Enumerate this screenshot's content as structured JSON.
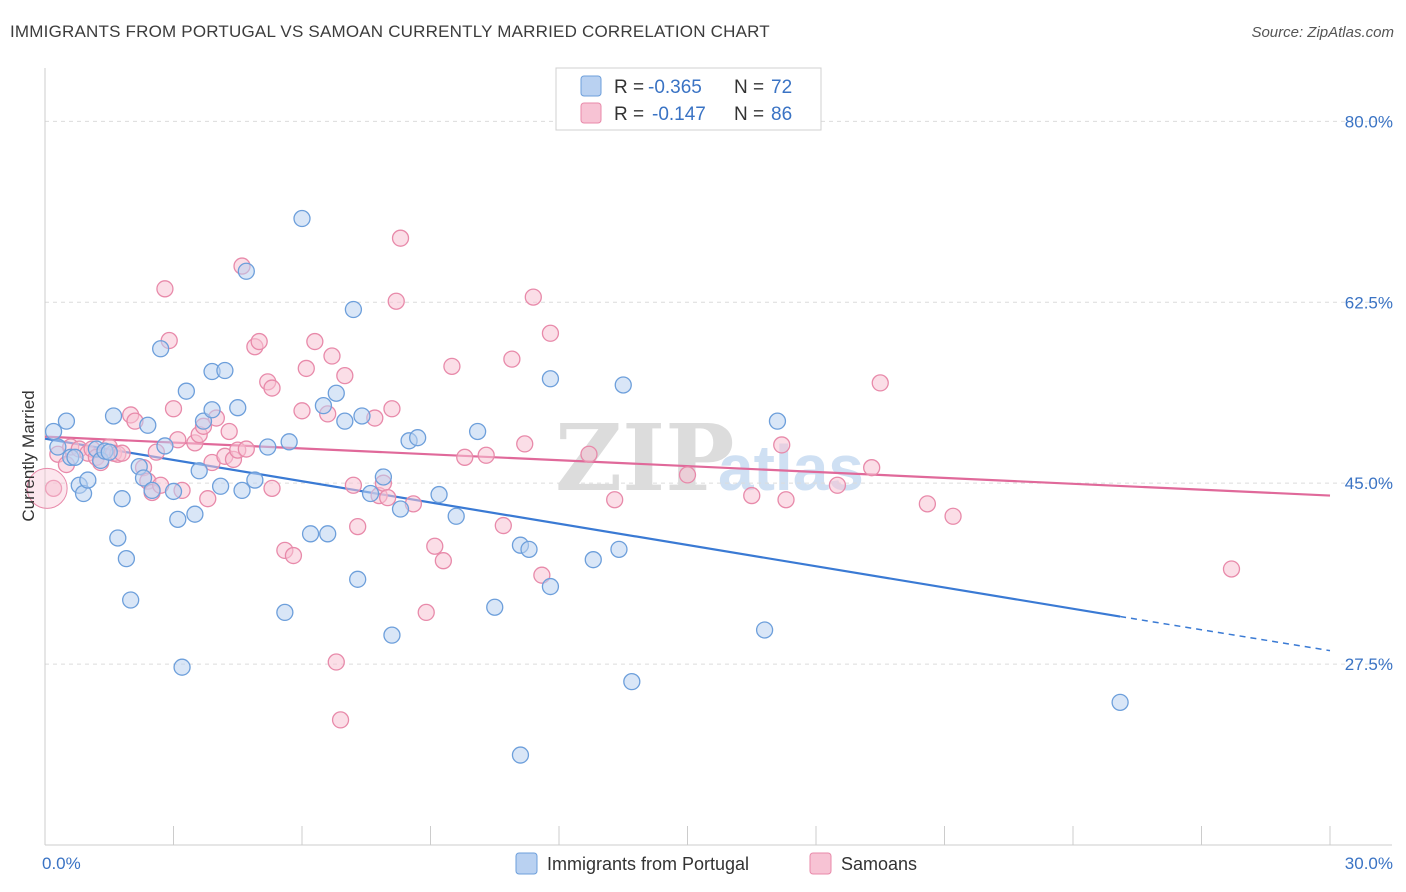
{
  "title": "IMMIGRANTS FROM PORTUGAL VS SAMOAN CURRENTLY MARRIED CORRELATION CHART",
  "source": "Source: ZipAtlas.com",
  "watermark": {
    "zip": "ZIP",
    "atlas": "atlas"
  },
  "legend": {
    "r_label": "R =",
    "n_label": "N =",
    "blue": {
      "r": "-0.365",
      "n": "72"
    },
    "pink": {
      "r": "-0.147",
      "n": "86"
    }
  },
  "colors": {
    "blue_fill": "#b9d1f1",
    "blue_stroke": "#6d9fdb",
    "blue_line": "#3a7ad4",
    "pink_fill": "#f7c3d4",
    "pink_stroke": "#e88aaa",
    "pink_line": "#e0699a",
    "grid": "#dcdcdc",
    "tick_text": "#3a73c4"
  },
  "chart_data": {
    "type": "scatter",
    "title": "IMMIGRANTS FROM PORTUGAL VS SAMOAN CURRENTLY MARRIED CORRELATION CHART",
    "xlabel": "",
    "ylabel": "Currently Married",
    "xlim": [
      0,
      30
    ],
    "ylim": [
      10,
      84
    ],
    "x_tick_labels": [
      "0.0%",
      "30.0%"
    ],
    "y_ticks": [
      27.5,
      45.0,
      62.5,
      80.0
    ],
    "y_tick_labels": [
      "27.5%",
      "45.0%",
      "62.5%",
      "80.0%"
    ],
    "grid": "horizontal dashed",
    "legend_position": "top-center",
    "series": [
      {
        "name": "Immigrants from Portugal",
        "color": "#6d9fdb",
        "trend": {
          "x": [
            0,
            25.1
          ],
          "y": [
            49.3,
            32.1
          ],
          "dashed_to": [
            30,
            28.8
          ]
        },
        "points": [
          [
            0.2,
            50.0
          ],
          [
            0.3,
            48.5
          ],
          [
            0.5,
            51.0
          ],
          [
            0.6,
            47.5
          ],
          [
            0.7,
            47.5
          ],
          [
            0.8,
            44.8
          ],
          [
            0.9,
            44.0
          ],
          [
            1.0,
            45.3
          ],
          [
            1.2,
            48.3
          ],
          [
            1.3,
            47.2
          ],
          [
            1.4,
            48.1
          ],
          [
            1.5,
            48.0
          ],
          [
            1.6,
            51.5
          ],
          [
            1.7,
            39.7
          ],
          [
            1.8,
            43.5
          ],
          [
            1.9,
            37.7
          ],
          [
            2.0,
            33.7
          ],
          [
            2.2,
            46.6
          ],
          [
            2.3,
            45.5
          ],
          [
            2.4,
            50.6
          ],
          [
            2.5,
            44.3
          ],
          [
            2.7,
            58.0
          ],
          [
            2.8,
            48.6
          ],
          [
            3.0,
            44.2
          ],
          [
            3.1,
            41.5
          ],
          [
            3.2,
            27.2
          ],
          [
            3.3,
            53.9
          ],
          [
            3.5,
            42.0
          ],
          [
            3.6,
            46.2
          ],
          [
            3.7,
            51.0
          ],
          [
            3.9,
            52.1
          ],
          [
            3.9,
            55.8
          ],
          [
            4.1,
            44.7
          ],
          [
            4.2,
            55.9
          ],
          [
            4.5,
            52.3
          ],
          [
            4.6,
            44.3
          ],
          [
            4.7,
            65.5
          ],
          [
            4.9,
            45.3
          ],
          [
            5.2,
            48.5
          ],
          [
            5.6,
            32.5
          ],
          [
            5.7,
            49.0
          ],
          [
            6.0,
            70.6
          ],
          [
            6.2,
            40.1
          ],
          [
            6.6,
            40.1
          ],
          [
            6.5,
            52.5
          ],
          [
            6.8,
            53.7
          ],
          [
            7.0,
            51.0
          ],
          [
            7.2,
            61.8
          ],
          [
            7.3,
            35.7
          ],
          [
            7.4,
            51.5
          ],
          [
            7.6,
            44.0
          ],
          [
            7.9,
            45.6
          ],
          [
            8.1,
            30.3
          ],
          [
            8.3,
            42.5
          ],
          [
            8.5,
            49.1
          ],
          [
            8.7,
            49.4
          ],
          [
            9.2,
            43.9
          ],
          [
            9.6,
            41.8
          ],
          [
            10.1,
            50.0
          ],
          [
            10.5,
            33.0
          ],
          [
            11.1,
            39.0
          ],
          [
            11.3,
            38.6
          ],
          [
            11.8,
            35.0
          ],
          [
            11.8,
            55.1
          ],
          [
            12.8,
            37.6
          ],
          [
            13.4,
            38.6
          ],
          [
            13.5,
            54.5
          ],
          [
            13.7,
            25.8
          ],
          [
            16.8,
            30.8
          ],
          [
            17.1,
            51.0
          ],
          [
            25.1,
            23.8
          ],
          [
            11.1,
            18.7
          ]
        ]
      },
      {
        "name": "Samoans",
        "color": "#e88aaa",
        "trend": {
          "x": [
            0,
            30
          ],
          "y": [
            49.5,
            43.8
          ]
        },
        "points": [
          [
            0.2,
            44.5
          ],
          [
            0.3,
            47.8
          ],
          [
            0.5,
            46.8
          ],
          [
            0.6,
            48.5
          ],
          [
            0.8,
            48.3
          ],
          [
            1.0,
            47.9
          ],
          [
            1.1,
            48.3
          ],
          [
            1.2,
            47.5
          ],
          [
            1.3,
            47.0
          ],
          [
            1.5,
            48.5
          ],
          [
            1.6,
            47.9
          ],
          [
            1.7,
            47.8
          ],
          [
            1.8,
            47.9
          ],
          [
            2.0,
            51.6
          ],
          [
            2.1,
            51.0
          ],
          [
            2.3,
            46.5
          ],
          [
            2.4,
            45.2
          ],
          [
            2.5,
            44.1
          ],
          [
            2.6,
            48.0
          ],
          [
            2.7,
            44.8
          ],
          [
            2.8,
            63.8
          ],
          [
            2.9,
            58.8
          ],
          [
            3.0,
            52.2
          ],
          [
            3.1,
            49.2
          ],
          [
            3.2,
            44.3
          ],
          [
            3.5,
            48.9
          ],
          [
            3.6,
            49.7
          ],
          [
            3.7,
            50.5
          ],
          [
            3.8,
            43.5
          ],
          [
            3.9,
            47.0
          ],
          [
            4.0,
            51.3
          ],
          [
            4.2,
            47.6
          ],
          [
            4.3,
            50.0
          ],
          [
            4.4,
            47.3
          ],
          [
            4.5,
            48.2
          ],
          [
            4.6,
            66.0
          ],
          [
            4.7,
            48.3
          ],
          [
            4.9,
            58.2
          ],
          [
            5.0,
            58.7
          ],
          [
            5.2,
            54.8
          ],
          [
            5.3,
            54.2
          ],
          [
            5.3,
            44.5
          ],
          [
            5.6,
            38.5
          ],
          [
            5.8,
            38.0
          ],
          [
            6.0,
            52.0
          ],
          [
            6.1,
            56.1
          ],
          [
            6.3,
            58.7
          ],
          [
            6.6,
            51.7
          ],
          [
            6.7,
            57.3
          ],
          [
            6.8,
            27.7
          ],
          [
            6.9,
            22.1
          ],
          [
            7.0,
            55.4
          ],
          [
            7.2,
            44.8
          ],
          [
            7.3,
            40.8
          ],
          [
            7.7,
            51.3
          ],
          [
            7.8,
            43.8
          ],
          [
            7.9,
            45.0
          ],
          [
            8.0,
            43.6
          ],
          [
            8.1,
            52.2
          ],
          [
            8.2,
            62.6
          ],
          [
            8.3,
            68.7
          ],
          [
            8.6,
            43.0
          ],
          [
            8.9,
            32.5
          ],
          [
            9.1,
            38.9
          ],
          [
            9.3,
            37.5
          ],
          [
            9.5,
            56.3
          ],
          [
            9.8,
            47.5
          ],
          [
            10.3,
            47.7
          ],
          [
            10.7,
            40.9
          ],
          [
            10.9,
            57.0
          ],
          [
            11.2,
            48.8
          ],
          [
            11.4,
            63.0
          ],
          [
            11.6,
            36.1
          ],
          [
            11.8,
            59.5
          ],
          [
            12.7,
            47.8
          ],
          [
            13.3,
            43.4
          ],
          [
            15.0,
            45.8
          ],
          [
            16.5,
            43.8
          ],
          [
            17.2,
            48.7
          ],
          [
            17.3,
            43.4
          ],
          [
            18.5,
            44.8
          ],
          [
            19.3,
            46.5
          ],
          [
            19.5,
            54.7
          ],
          [
            20.6,
            43.0
          ],
          [
            21.2,
            41.8
          ],
          [
            27.7,
            36.7
          ]
        ]
      }
    ]
  },
  "bottom_legend": [
    "Immigrants from Portugal",
    "Samoans"
  ]
}
